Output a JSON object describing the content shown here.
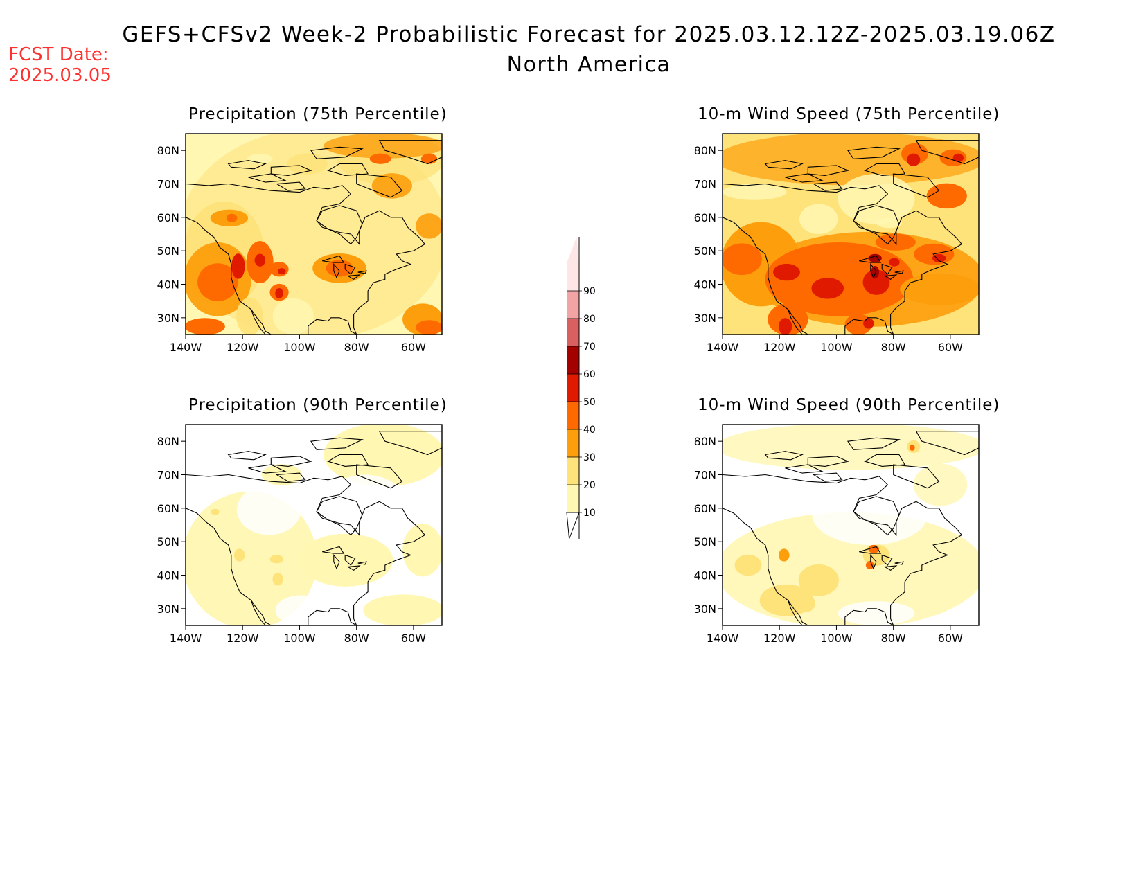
{
  "title_line1": "GEFS+CFSv2 Week-2 Probabilistic Forecast for 2025.03.12.12Z-2025.03.19.06Z",
  "title_line2": "North America",
  "fcst_date_label": "FCST Date:",
  "fcst_date_value": "2025.03.05",
  "colors": {
    "c10": "#fff7b2",
    "c20": "#fee27a",
    "c30": "#fd9f0c",
    "c40": "#fe6a00",
    "c50": "#e01a00",
    "c60": "#a30000",
    "c70": "#d96060",
    "c80": "#f2a3a3",
    "c90": "#ffe6e6"
  },
  "colorbar": {
    "levels": [
      "10",
      "20",
      "30",
      "40",
      "50",
      "60",
      "70",
      "80",
      "90"
    ]
  },
  "axes": {
    "lon_ticks": [
      "140W",
      "120W",
      "100W",
      "80W",
      "60W"
    ],
    "lat_ticks": [
      "80N",
      "70N",
      "60N",
      "50N",
      "40N",
      "30N"
    ]
  },
  "panels": [
    {
      "id": "precip75",
      "title": "Precipitation (75th Percentile)",
      "base": "c10",
      "blobs": [
        [
          "c20",
          0,
          0,
          1,
          1,
          0.55
        ],
        [
          "c20",
          0.6,
          0.0,
          0.4,
          0.25,
          0.8
        ],
        [
          "c30",
          0.55,
          0.0,
          0.45,
          0.12,
          0.8
        ],
        [
          "c40",
          0.72,
          0.1,
          0.08,
          0.05,
          1
        ],
        [
          "c40",
          0.92,
          0.1,
          0.06,
          0.05,
          1
        ],
        [
          "c30",
          0.73,
          0.2,
          0.15,
          0.12,
          0.9
        ],
        [
          "c20",
          0.0,
          0.35,
          0.3,
          0.5,
          0.9
        ],
        [
          "c30",
          0.0,
          0.55,
          0.25,
          0.35,
          0.95
        ],
        [
          "c40",
          0.05,
          0.65,
          0.15,
          0.18,
          1
        ],
        [
          "c50",
          0.18,
          0.6,
          0.05,
          0.12,
          1
        ],
        [
          "c40",
          0.24,
          0.54,
          0.1,
          0.2,
          1
        ],
        [
          "c50",
          0.27,
          0.6,
          0.04,
          0.06,
          1
        ],
        [
          "c40",
          0.33,
          0.64,
          0.07,
          0.07,
          1
        ],
        [
          "c50",
          0.36,
          0.67,
          0.03,
          0.03,
          1
        ],
        [
          "c40",
          0.33,
          0.75,
          0.07,
          0.08,
          1
        ],
        [
          "c50",
          0.35,
          0.77,
          0.03,
          0.05,
          1
        ],
        [
          "c30",
          0.1,
          0.38,
          0.14,
          0.08,
          1
        ],
        [
          "c40",
          0.16,
          0.4,
          0.04,
          0.04,
          1
        ],
        [
          "c30",
          0.5,
          0.6,
          0.2,
          0.14,
          1
        ],
        [
          "c40",
          0.55,
          0.63,
          0.1,
          0.08,
          1
        ],
        [
          "c30",
          0.9,
          0.4,
          0.1,
          0.12,
          0.9
        ],
        [
          "c40",
          0.0,
          0.92,
          0.15,
          0.08,
          1
        ],
        [
          "c30",
          0.85,
          0.85,
          0.15,
          0.15,
          1
        ],
        [
          "c40",
          0.9,
          0.93,
          0.1,
          0.07,
          1
        ],
        [
          "c20",
          0.4,
          0.1,
          0.15,
          0.1,
          0.8
        ],
        [
          "c20",
          0.2,
          0.82,
          0.1,
          0.18,
          0.9
        ]
      ],
      "white": [
        [
          0.34,
          0.82,
          0.16,
          0.18
        ],
        [
          0.24,
          0.1,
          0.1,
          0.05
        ]
      ]
    },
    {
      "id": "wind75",
      "title": "10-m Wind Speed (75th Percentile)",
      "base": "c20",
      "blobs": [
        [
          "c30",
          0.0,
          0.0,
          1,
          0.25,
          0.7
        ],
        [
          "c40",
          0.7,
          0.05,
          0.1,
          0.1,
          1
        ],
        [
          "c50",
          0.72,
          0.1,
          0.05,
          0.06,
          1
        ],
        [
          "c40",
          0.85,
          0.08,
          0.1,
          0.08,
          1
        ],
        [
          "c50",
          0.9,
          0.1,
          0.04,
          0.04,
          1
        ],
        [
          "c40",
          0.8,
          0.25,
          0.15,
          0.12,
          1
        ],
        [
          "c30",
          0.0,
          0.45,
          0.3,
          0.4,
          1
        ],
        [
          "c40",
          0.0,
          0.55,
          0.15,
          0.15,
          1
        ],
        [
          "c30",
          0.15,
          0.5,
          0.85,
          0.45,
          0.9
        ],
        [
          "c40",
          0.18,
          0.55,
          0.55,
          0.35,
          1
        ],
        [
          "c50",
          0.2,
          0.65,
          0.1,
          0.08,
          1
        ],
        [
          "c50",
          0.35,
          0.72,
          0.12,
          0.1,
          1
        ],
        [
          "c50",
          0.55,
          0.68,
          0.1,
          0.12,
          1
        ],
        [
          "c60",
          0.57,
          0.6,
          0.05,
          0.04,
          1
        ],
        [
          "c60",
          0.58,
          0.66,
          0.03,
          0.06,
          1
        ],
        [
          "c40",
          0.75,
          0.55,
          0.15,
          0.1,
          1
        ],
        [
          "c50",
          0.82,
          0.6,
          0.05,
          0.04,
          1
        ],
        [
          "c40",
          0.6,
          0.5,
          0.15,
          0.08,
          1
        ],
        [
          "c50",
          0.65,
          0.62,
          0.04,
          0.04,
          1
        ],
        [
          "c40",
          0.18,
          0.85,
          0.15,
          0.15,
          1
        ],
        [
          "c50",
          0.22,
          0.92,
          0.05,
          0.08,
          1
        ],
        [
          "c30",
          0.7,
          0.7,
          0.3,
          0.15,
          1
        ],
        [
          "c40",
          0.48,
          0.9,
          0.1,
          0.1,
          1
        ],
        [
          "c50",
          0.55,
          0.92,
          0.04,
          0.05,
          1
        ]
      ],
      "white": [
        [
          0.0,
          0.25,
          0.25,
          0.08
        ],
        [
          0.3,
          0.35,
          0.15,
          0.15
        ],
        [
          0.45,
          0.2,
          0.3,
          0.25
        ],
        [
          0.6,
          0.42,
          0.1,
          0.05
        ]
      ]
    },
    {
      "id": "precip90",
      "title": "Precipitation (90th Percentile)",
      "base": "white",
      "blobs": [
        [
          "c10",
          0.55,
          0.0,
          0.45,
          0.3,
          1
        ],
        [
          "c10",
          0.0,
          0.35,
          0.5,
          0.65,
          0.95
        ],
        [
          "c10",
          0.45,
          0.55,
          0.35,
          0.25,
          1
        ],
        [
          "c10",
          0.85,
          0.5,
          0.15,
          0.25,
          1
        ],
        [
          "c10",
          0.7,
          0.85,
          0.3,
          0.15,
          1
        ],
        [
          "c10",
          0.3,
          0.2,
          0.15,
          0.1,
          1
        ],
        [
          "c20",
          0.19,
          0.62,
          0.04,
          0.06,
          1
        ],
        [
          "c20",
          0.33,
          0.65,
          0.05,
          0.04,
          1
        ],
        [
          "c20",
          0.34,
          0.74,
          0.04,
          0.06,
          1
        ],
        [
          "c20",
          0.1,
          0.42,
          0.03,
          0.03,
          1
        ]
      ],
      "white": [
        [
          0.2,
          0.3,
          0.25,
          0.25
        ],
        [
          0.35,
          0.85,
          0.2,
          0.15
        ],
        [
          0.55,
          0.25,
          0.3,
          0.25
        ]
      ]
    },
    {
      "id": "wind90",
      "title": "10-m Wind Speed (90th Percentile)",
      "base": "white",
      "blobs": [
        [
          "c10",
          0.0,
          0.0,
          1,
          0.22,
          0.8
        ],
        [
          "c10",
          0.0,
          0.45,
          1,
          0.55,
          0.9
        ],
        [
          "c10",
          0.75,
          0.2,
          0.2,
          0.2,
          0.8
        ],
        [
          "c20",
          0.05,
          0.65,
          0.1,
          0.1,
          1
        ],
        [
          "c30",
          0.22,
          0.62,
          0.04,
          0.06,
          1
        ],
        [
          "c20",
          0.3,
          0.7,
          0.15,
          0.15,
          1
        ],
        [
          "c20",
          0.55,
          0.6,
          0.1,
          0.1,
          1
        ],
        [
          "c40",
          0.57,
          0.6,
          0.04,
          0.04,
          1
        ],
        [
          "c40",
          0.56,
          0.68,
          0.03,
          0.04,
          1
        ],
        [
          "c20",
          0.15,
          0.8,
          0.2,
          0.15,
          1
        ],
        [
          "c20",
          0.72,
          0.08,
          0.05,
          0.06,
          1
        ],
        [
          "c40",
          0.73,
          0.1,
          0.02,
          0.03,
          1
        ],
        [
          "c20",
          0.3,
          0.85,
          0.06,
          0.08,
          1
        ]
      ],
      "white": [
        [
          0.35,
          0.3,
          0.45,
          0.3
        ],
        [
          0.0,
          0.25,
          0.35,
          0.2
        ],
        [
          0.45,
          0.88,
          0.3,
          0.12
        ]
      ]
    }
  ]
}
